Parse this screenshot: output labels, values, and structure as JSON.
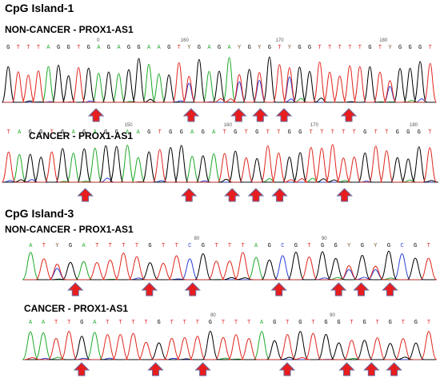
{
  "colors": {
    "A": "#1faa2a",
    "C": "#2a3fd6",
    "G": "#000000",
    "T": "#e0271f",
    "Y": "#7a5a2a",
    "arrow_fill": "#e81d1d",
    "arrow_stroke": "#6a6aa0"
  },
  "sections": [
    {
      "title": "CpG Island-1",
      "panels": [
        {
          "title": "NON-CANCER - PROX1-AS1",
          "sequence": "GTTTAGGTGAGAGGAAGTYGAGAYGYGTYGGTTTTTGTYGGGT",
          "ticks": [
            {
              "label": "0",
              "pos": 0.22
            },
            {
              "label": "160",
              "pos": 0.42
            },
            {
              "label": "170",
              "pos": 0.64
            },
            {
              "label": "180",
              "pos": 0.88
            }
          ],
          "arrows": [
            0.215,
            0.435,
            0.545,
            0.595,
            0.65,
            0.8
          ]
        },
        {
          "title": "CANCER - PROX1-AS1",
          "sequence": "TAGGTGAGAGGAAGTGGAGATGTGTTGGTTTTTGTTGGGT",
          "ticks": [
            {
              "label": "150",
              "pos": 0.29
            },
            {
              "label": "160",
              "pos": 0.52
            },
            {
              "label": "170",
              "pos": 0.72
            },
            {
              "label": "180",
              "pos": 0.95
            }
          ],
          "arrows": [
            0.19,
            0.43,
            0.53,
            0.585,
            0.64,
            0.79
          ]
        }
      ]
    },
    {
      "title": "CpG Island-3",
      "panels": [
        {
          "title": "NON-CANCER - PROX1-AS1",
          "sequence": "ATYGATTTTGTTCGTTTAGCGTGGYGYGCGT",
          "ticks": [
            {
              "label": "80",
              "pos": 0.42
            },
            {
              "label": "90",
              "pos": 0.73
            }
          ],
          "arrows": [
            0.125,
            0.305,
            0.41,
            0.62,
            0.765,
            0.82,
            0.89
          ]
        },
        {
          "title": "CANCER - PROX1-AS1",
          "sequence": "AATTGATTTTGTTTGTTTAGTGTGGTGTGTGT",
          "ticks": [
            {
              "label": "80",
              "pos": 0.46
            },
            {
              "label": "90",
              "pos": 0.75
            }
          ],
          "arrows": [
            0.14,
            0.32,
            0.435,
            0.64,
            0.785,
            0.845,
            0.9
          ]
        }
      ]
    }
  ]
}
